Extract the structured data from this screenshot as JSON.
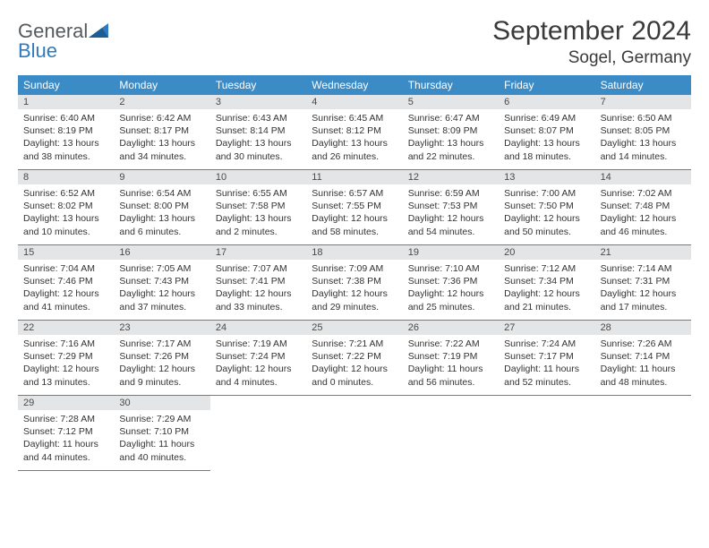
{
  "logo": {
    "text1": "General",
    "text2": "Blue"
  },
  "title": "September 2024",
  "location": "Sogel, Germany",
  "colors": {
    "header_bg": "#3b8bc7",
    "header_fg": "#ffffff",
    "daynum_bg": "#e3e5e7",
    "border": "#3b8bc7",
    "text": "#333333"
  },
  "dow": [
    "Sunday",
    "Monday",
    "Tuesday",
    "Wednesday",
    "Thursday",
    "Friday",
    "Saturday"
  ],
  "days": [
    {
      "n": "1",
      "sunrise": "Sunrise: 6:40 AM",
      "sunset": "Sunset: 8:19 PM",
      "d1": "Daylight: 13 hours",
      "d2": "and 38 minutes."
    },
    {
      "n": "2",
      "sunrise": "Sunrise: 6:42 AM",
      "sunset": "Sunset: 8:17 PM",
      "d1": "Daylight: 13 hours",
      "d2": "and 34 minutes."
    },
    {
      "n": "3",
      "sunrise": "Sunrise: 6:43 AM",
      "sunset": "Sunset: 8:14 PM",
      "d1": "Daylight: 13 hours",
      "d2": "and 30 minutes."
    },
    {
      "n": "4",
      "sunrise": "Sunrise: 6:45 AM",
      "sunset": "Sunset: 8:12 PM",
      "d1": "Daylight: 13 hours",
      "d2": "and 26 minutes."
    },
    {
      "n": "5",
      "sunrise": "Sunrise: 6:47 AM",
      "sunset": "Sunset: 8:09 PM",
      "d1": "Daylight: 13 hours",
      "d2": "and 22 minutes."
    },
    {
      "n": "6",
      "sunrise": "Sunrise: 6:49 AM",
      "sunset": "Sunset: 8:07 PM",
      "d1": "Daylight: 13 hours",
      "d2": "and 18 minutes."
    },
    {
      "n": "7",
      "sunrise": "Sunrise: 6:50 AM",
      "sunset": "Sunset: 8:05 PM",
      "d1": "Daylight: 13 hours",
      "d2": "and 14 minutes."
    },
    {
      "n": "8",
      "sunrise": "Sunrise: 6:52 AM",
      "sunset": "Sunset: 8:02 PM",
      "d1": "Daylight: 13 hours",
      "d2": "and 10 minutes."
    },
    {
      "n": "9",
      "sunrise": "Sunrise: 6:54 AM",
      "sunset": "Sunset: 8:00 PM",
      "d1": "Daylight: 13 hours",
      "d2": "and 6 minutes."
    },
    {
      "n": "10",
      "sunrise": "Sunrise: 6:55 AM",
      "sunset": "Sunset: 7:58 PM",
      "d1": "Daylight: 13 hours",
      "d2": "and 2 minutes."
    },
    {
      "n": "11",
      "sunrise": "Sunrise: 6:57 AM",
      "sunset": "Sunset: 7:55 PM",
      "d1": "Daylight: 12 hours",
      "d2": "and 58 minutes."
    },
    {
      "n": "12",
      "sunrise": "Sunrise: 6:59 AM",
      "sunset": "Sunset: 7:53 PM",
      "d1": "Daylight: 12 hours",
      "d2": "and 54 minutes."
    },
    {
      "n": "13",
      "sunrise": "Sunrise: 7:00 AM",
      "sunset": "Sunset: 7:50 PM",
      "d1": "Daylight: 12 hours",
      "d2": "and 50 minutes."
    },
    {
      "n": "14",
      "sunrise": "Sunrise: 7:02 AM",
      "sunset": "Sunset: 7:48 PM",
      "d1": "Daylight: 12 hours",
      "d2": "and 46 minutes."
    },
    {
      "n": "15",
      "sunrise": "Sunrise: 7:04 AM",
      "sunset": "Sunset: 7:46 PM",
      "d1": "Daylight: 12 hours",
      "d2": "and 41 minutes."
    },
    {
      "n": "16",
      "sunrise": "Sunrise: 7:05 AM",
      "sunset": "Sunset: 7:43 PM",
      "d1": "Daylight: 12 hours",
      "d2": "and 37 minutes."
    },
    {
      "n": "17",
      "sunrise": "Sunrise: 7:07 AM",
      "sunset": "Sunset: 7:41 PM",
      "d1": "Daylight: 12 hours",
      "d2": "and 33 minutes."
    },
    {
      "n": "18",
      "sunrise": "Sunrise: 7:09 AM",
      "sunset": "Sunset: 7:38 PM",
      "d1": "Daylight: 12 hours",
      "d2": "and 29 minutes."
    },
    {
      "n": "19",
      "sunrise": "Sunrise: 7:10 AM",
      "sunset": "Sunset: 7:36 PM",
      "d1": "Daylight: 12 hours",
      "d2": "and 25 minutes."
    },
    {
      "n": "20",
      "sunrise": "Sunrise: 7:12 AM",
      "sunset": "Sunset: 7:34 PM",
      "d1": "Daylight: 12 hours",
      "d2": "and 21 minutes."
    },
    {
      "n": "21",
      "sunrise": "Sunrise: 7:14 AM",
      "sunset": "Sunset: 7:31 PM",
      "d1": "Daylight: 12 hours",
      "d2": "and 17 minutes."
    },
    {
      "n": "22",
      "sunrise": "Sunrise: 7:16 AM",
      "sunset": "Sunset: 7:29 PM",
      "d1": "Daylight: 12 hours",
      "d2": "and 13 minutes."
    },
    {
      "n": "23",
      "sunrise": "Sunrise: 7:17 AM",
      "sunset": "Sunset: 7:26 PM",
      "d1": "Daylight: 12 hours",
      "d2": "and 9 minutes."
    },
    {
      "n": "24",
      "sunrise": "Sunrise: 7:19 AM",
      "sunset": "Sunset: 7:24 PM",
      "d1": "Daylight: 12 hours",
      "d2": "and 4 minutes."
    },
    {
      "n": "25",
      "sunrise": "Sunrise: 7:21 AM",
      "sunset": "Sunset: 7:22 PM",
      "d1": "Daylight: 12 hours",
      "d2": "and 0 minutes."
    },
    {
      "n": "26",
      "sunrise": "Sunrise: 7:22 AM",
      "sunset": "Sunset: 7:19 PM",
      "d1": "Daylight: 11 hours",
      "d2": "and 56 minutes."
    },
    {
      "n": "27",
      "sunrise": "Sunrise: 7:24 AM",
      "sunset": "Sunset: 7:17 PM",
      "d1": "Daylight: 11 hours",
      "d2": "and 52 minutes."
    },
    {
      "n": "28",
      "sunrise": "Sunrise: 7:26 AM",
      "sunset": "Sunset: 7:14 PM",
      "d1": "Daylight: 11 hours",
      "d2": "and 48 minutes."
    },
    {
      "n": "29",
      "sunrise": "Sunrise: 7:28 AM",
      "sunset": "Sunset: 7:12 PM",
      "d1": "Daylight: 11 hours",
      "d2": "and 44 minutes."
    },
    {
      "n": "30",
      "sunrise": "Sunrise: 7:29 AM",
      "sunset": "Sunset: 7:10 PM",
      "d1": "Daylight: 11 hours",
      "d2": "and 40 minutes."
    }
  ]
}
